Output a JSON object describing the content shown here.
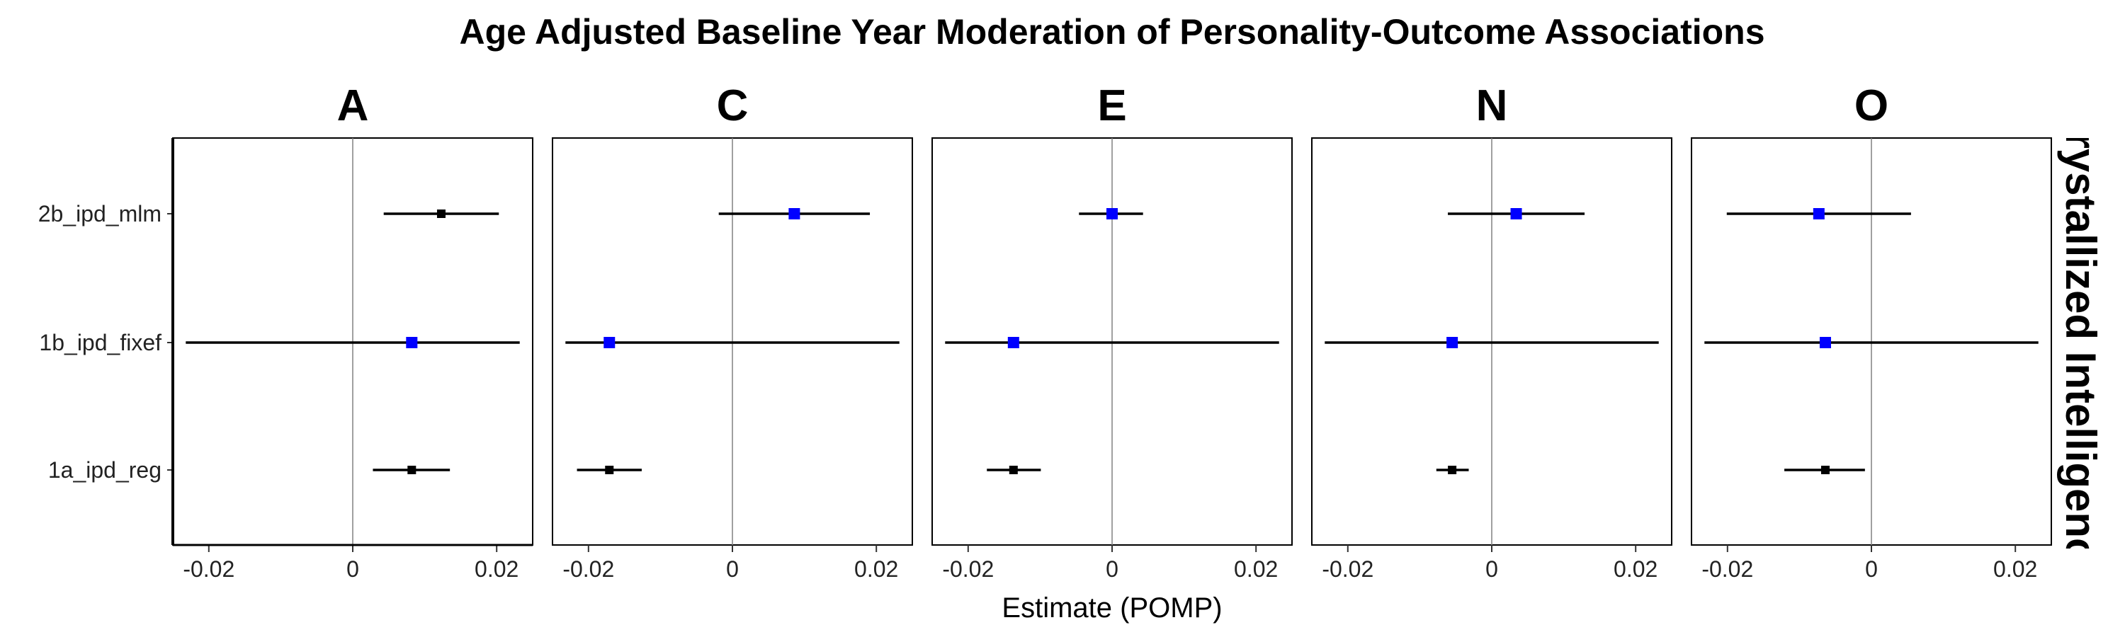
{
  "chart_data": {
    "type": "forest",
    "title": "Age Adjusted Baseline Year Moderation of Personality-Outcome Associations",
    "xlabel": "Estimate (POMP)",
    "ylabel": "",
    "strip_label": "Crystallized Intelligence",
    "xlim": [
      -0.025,
      0.025
    ],
    "x_ticks": [
      -0.02,
      0,
      0.02
    ],
    "x_tick_labels": [
      "-0.02",
      "0",
      "0.02"
    ],
    "reference_line": 0,
    "categories": [
      "2b_ipd_mlm",
      "1b_ipd_fixef",
      "1a_ipd_reg"
    ],
    "colors": {
      "sig": "#000000",
      "nonsig": "#0000ff",
      "axis": "#000000",
      "ref_line": "#808080"
    },
    "facets": [
      {
        "name": "A",
        "points": [
          {
            "category": "2b_ipd_mlm",
            "estimate": 0.0123,
            "lower": 0.0043,
            "upper": 0.0203,
            "color": "black"
          },
          {
            "category": "1b_ipd_fixef",
            "estimate": 0.0082,
            "lower": -0.0232,
            "upper": 0.0232,
            "color": "blue"
          },
          {
            "category": "1a_ipd_reg",
            "estimate": 0.0082,
            "lower": 0.0028,
            "upper": 0.0135,
            "color": "black"
          }
        ]
      },
      {
        "name": "C",
        "points": [
          {
            "category": "2b_ipd_mlm",
            "estimate": 0.0086,
            "lower": -0.0019,
            "upper": 0.0191,
            "color": "blue"
          },
          {
            "category": "1b_ipd_fixef",
            "estimate": -0.0171,
            "lower": -0.0232,
            "upper": 0.0232,
            "color": "blue"
          },
          {
            "category": "1a_ipd_reg",
            "estimate": -0.0171,
            "lower": -0.0216,
            "upper": -0.0126,
            "color": "black"
          }
        ]
      },
      {
        "name": "E",
        "points": [
          {
            "category": "2b_ipd_mlm",
            "estimate": 0.0,
            "lower": -0.0046,
            "upper": 0.0043,
            "color": "blue"
          },
          {
            "category": "1b_ipd_fixef",
            "estimate": -0.0137,
            "lower": -0.0232,
            "upper": 0.0232,
            "color": "blue"
          },
          {
            "category": "1a_ipd_reg",
            "estimate": -0.0137,
            "lower": -0.0174,
            "upper": -0.0099,
            "color": "black"
          }
        ]
      },
      {
        "name": "N",
        "points": [
          {
            "category": "2b_ipd_mlm",
            "estimate": 0.0034,
            "lower": -0.0061,
            "upper": 0.0129,
            "color": "blue"
          },
          {
            "category": "1b_ipd_fixef",
            "estimate": -0.0055,
            "lower": -0.0232,
            "upper": 0.0232,
            "color": "blue"
          },
          {
            "category": "1a_ipd_reg",
            "estimate": -0.0055,
            "lower": -0.0077,
            "upper": -0.0032,
            "color": "black"
          }
        ]
      },
      {
        "name": "O",
        "points": [
          {
            "category": "2b_ipd_mlm",
            "estimate": -0.0073,
            "lower": -0.0201,
            "upper": 0.0055,
            "color": "blue"
          },
          {
            "category": "1b_ipd_fixef",
            "estimate": -0.0064,
            "lower": -0.0232,
            "upper": 0.0232,
            "color": "blue"
          },
          {
            "category": "1a_ipd_reg",
            "estimate": -0.0064,
            "lower": -0.0121,
            "upper": -0.0009,
            "color": "black"
          }
        ]
      }
    ]
  }
}
